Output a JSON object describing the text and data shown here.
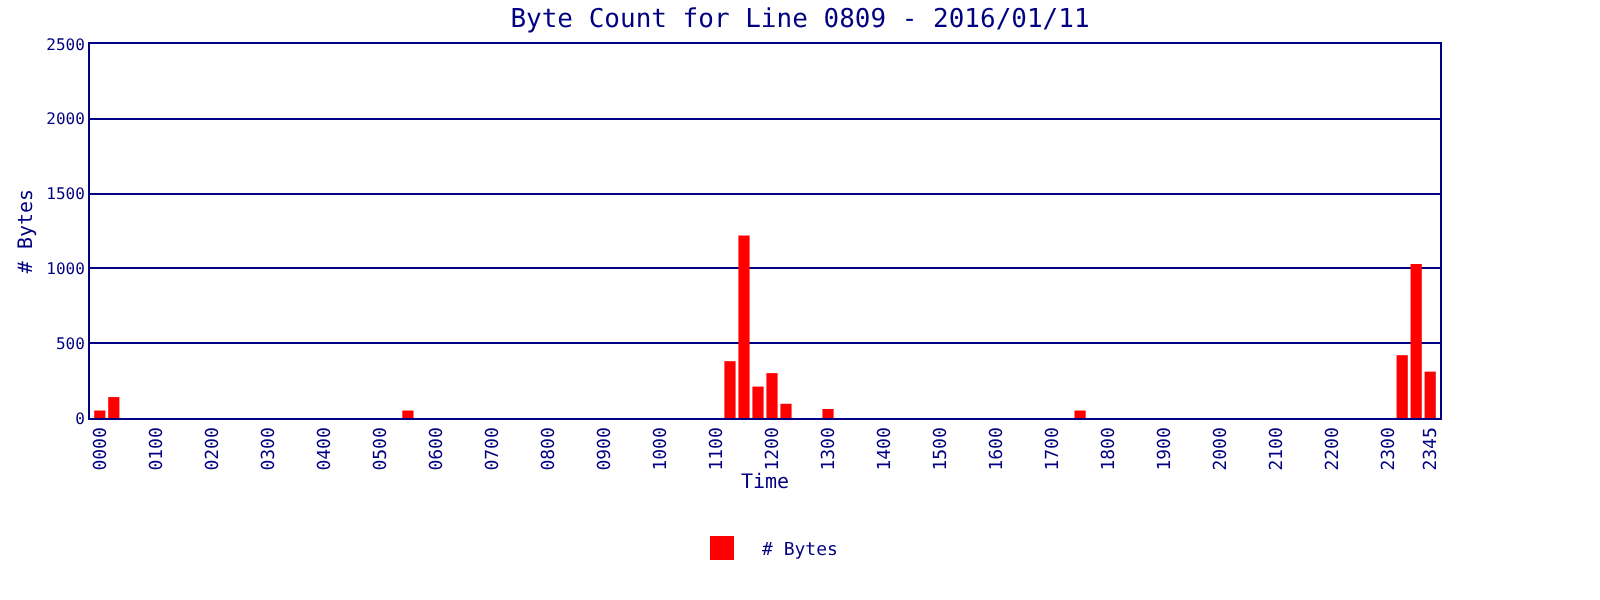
{
  "chart_data": {
    "type": "bar",
    "title": "Byte Count for Line 0809 - 2016/01/11",
    "xlabel": "Time",
    "ylabel": "# Bytes",
    "categories": [
      "0000",
      null,
      null,
      null,
      "0100",
      null,
      null,
      null,
      "0200",
      null,
      null,
      null,
      "0300",
      null,
      null,
      null,
      "0400",
      null,
      null,
      null,
      "0500",
      null,
      null,
      null,
      "0600",
      null,
      null,
      null,
      "0700",
      null,
      null,
      null,
      "0800",
      null,
      null,
      null,
      "0900",
      null,
      null,
      null,
      "1000",
      null,
      null,
      null,
      "1100",
      null,
      null,
      null,
      "1200",
      null,
      null,
      null,
      "1300",
      null,
      null,
      null,
      "1400",
      null,
      null,
      null,
      "1500",
      null,
      null,
      null,
      "1600",
      null,
      null,
      null,
      "1700",
      null,
      null,
      null,
      "1800",
      null,
      null,
      null,
      "1900",
      null,
      null,
      null,
      "2000",
      null,
      null,
      null,
      "2100",
      null,
      null,
      null,
      "2200",
      null,
      null,
      null,
      "2300",
      null,
      null,
      "2345"
    ],
    "series": [
      {
        "name": "# Bytes",
        "color": "#ff0000",
        "values": [
          50,
          140,
          0,
          0,
          0,
          0,
          0,
          0,
          0,
          0,
          0,
          0,
          0,
          0,
          0,
          0,
          0,
          0,
          0,
          0,
          0,
          0,
          50,
          0,
          0,
          0,
          0,
          0,
          0,
          0,
          0,
          0,
          0,
          0,
          0,
          0,
          0,
          0,
          0,
          0,
          0,
          0,
          0,
          0,
          0,
          380,
          1220,
          210,
          300,
          95,
          0,
          0,
          60,
          0,
          0,
          0,
          0,
          0,
          0,
          0,
          0,
          0,
          0,
          0,
          0,
          0,
          0,
          0,
          0,
          0,
          50,
          0,
          0,
          0,
          0,
          0,
          0,
          0,
          0,
          0,
          0,
          0,
          0,
          0,
          0,
          0,
          0,
          0,
          0,
          0,
          0,
          0,
          0,
          420,
          1030,
          310
        ]
      }
    ],
    "ylim": [
      0,
      2500
    ],
    "yticks": [
      0,
      500,
      1000,
      1500,
      2000,
      2500
    ],
    "grid": "y",
    "legend": "bottom"
  }
}
